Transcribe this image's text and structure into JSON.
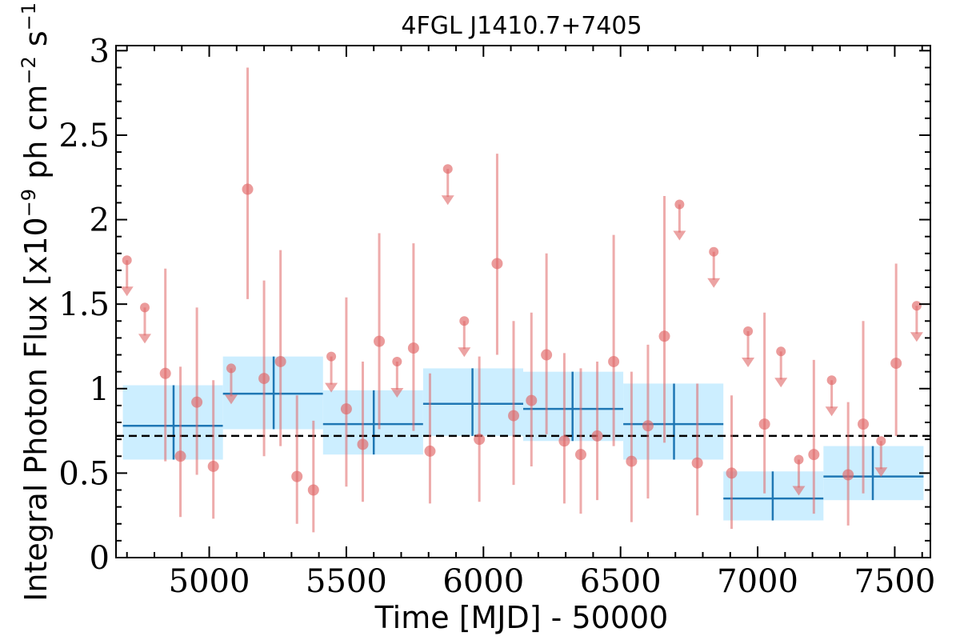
{
  "chart_data": {
    "type": "scatter",
    "title": "4FGL J1410.7+7405",
    "xlabel": "Time [MJD] - 50000",
    "ylabel_main": "Integral Photon Flux [x10",
    "ylabel_exp1": "−9",
    "ylabel_mid": " ph cm",
    "ylabel_exp2": "−2",
    "ylabel_mid2": " s",
    "ylabel_exp3": "−1",
    "ylabel_end": "]",
    "xlim": [
      4660,
      7630
    ],
    "ylim": [
      0,
      3.03
    ],
    "xticks": [
      5000,
      5500,
      6000,
      6500,
      7000,
      7500
    ],
    "xtick_labels": [
      "5000",
      "5500",
      "6000",
      "6500",
      "7000",
      "7500"
    ],
    "yticks": [
      0,
      0.5,
      1,
      1.5,
      2,
      2.5,
      3
    ],
    "ytick_labels": [
      "0",
      "0.5",
      "1",
      "1.5",
      "2",
      "2.5",
      "3"
    ],
    "grid": false,
    "mean_flux": 0.72,
    "colors": {
      "points": "#e06666",
      "bins_fill": "#cceeff",
      "bins_line": "#1f77b4",
      "mean_line": "#000000"
    },
    "detections": [
      {
        "x": 4840,
        "y": 1.09,
        "ylo": 0.57,
        "yhi": 1.71
      },
      {
        "x": 4895,
        "y": 0.6,
        "ylo": 0.24,
        "yhi": 1.13
      },
      {
        "x": 4955,
        "y": 0.92,
        "ylo": 0.49,
        "yhi": 1.48
      },
      {
        "x": 5015,
        "y": 0.54,
        "ylo": 0.23,
        "yhi": 1.05
      },
      {
        "x": 5140,
        "y": 2.18,
        "ylo": 1.53,
        "yhi": 2.9
      },
      {
        "x": 5200,
        "y": 1.06,
        "ylo": 0.6,
        "yhi": 1.64
      },
      {
        "x": 5260,
        "y": 1.16,
        "ylo": 0.66,
        "yhi": 1.82
      },
      {
        "x": 5320,
        "y": 0.48,
        "ylo": 0.2,
        "yhi": 0.96
      },
      {
        "x": 5380,
        "y": 0.4,
        "ylo": 0.15,
        "yhi": 0.81
      },
      {
        "x": 5500,
        "y": 0.88,
        "ylo": 0.42,
        "yhi": 1.54
      },
      {
        "x": 5560,
        "y": 0.67,
        "ylo": 0.33,
        "yhi": 1.16
      },
      {
        "x": 5620,
        "y": 1.28,
        "ylo": 0.76,
        "yhi": 1.92
      },
      {
        "x": 5745,
        "y": 1.24,
        "ylo": 0.75,
        "yhi": 1.86
      },
      {
        "x": 5805,
        "y": 0.63,
        "ylo": 0.32,
        "yhi": 1.09
      },
      {
        "x": 5985,
        "y": 0.7,
        "ylo": 0.33,
        "yhi": 1.19
      },
      {
        "x": 6050,
        "y": 1.74,
        "ylo": 1.2,
        "yhi": 2.39
      },
      {
        "x": 6110,
        "y": 0.84,
        "ylo": 0.43,
        "yhi": 1.4
      },
      {
        "x": 6175,
        "y": 0.93,
        "ylo": 0.54,
        "yhi": 1.45
      },
      {
        "x": 6230,
        "y": 1.2,
        "ylo": 0.73,
        "yhi": 1.8
      },
      {
        "x": 6295,
        "y": 0.69,
        "ylo": 0.32,
        "yhi": 1.21
      },
      {
        "x": 6355,
        "y": 0.61,
        "ylo": 0.26,
        "yhi": 1.12
      },
      {
        "x": 6415,
        "y": 0.72,
        "ylo": 0.34,
        "yhi": 1.16
      },
      {
        "x": 6475,
        "y": 1.16,
        "ylo": 0.66,
        "yhi": 1.91
      },
      {
        "x": 6540,
        "y": 0.57,
        "ylo": 0.21,
        "yhi": 1.1
      },
      {
        "x": 6600,
        "y": 0.78,
        "ylo": 0.35,
        "yhi": 1.26
      },
      {
        "x": 6660,
        "y": 1.31,
        "ylo": 0.68,
        "yhi": 2.14
      },
      {
        "x": 6780,
        "y": 0.56,
        "ylo": 0.25,
        "yhi": 1.03
      },
      {
        "x": 6905,
        "y": 0.5,
        "ylo": 0.17,
        "yhi": 0.96
      },
      {
        "x": 7025,
        "y": 0.79,
        "ylo": 0.38,
        "yhi": 1.45
      },
      {
        "x": 7205,
        "y": 0.61,
        "ylo": 0.26,
        "yhi": 1.17
      },
      {
        "x": 7330,
        "y": 0.49,
        "ylo": 0.19,
        "yhi": 0.92
      },
      {
        "x": 7385,
        "y": 0.79,
        "ylo": 0.38,
        "yhi": 1.4
      },
      {
        "x": 7505,
        "y": 1.15,
        "ylo": 0.72,
        "yhi": 1.74
      }
    ],
    "upper_limits": [
      {
        "x": 4700,
        "y": 1.76
      },
      {
        "x": 4765,
        "y": 1.48
      },
      {
        "x": 5080,
        "y": 1.12
      },
      {
        "x": 5445,
        "y": 1.19
      },
      {
        "x": 5685,
        "y": 1.16
      },
      {
        "x": 5870,
        "y": 2.3
      },
      {
        "x": 5930,
        "y": 1.4
      },
      {
        "x": 6715,
        "y": 2.09
      },
      {
        "x": 6840,
        "y": 1.81
      },
      {
        "x": 6965,
        "y": 1.34
      },
      {
        "x": 7085,
        "y": 1.22
      },
      {
        "x": 7150,
        "y": 0.58
      },
      {
        "x": 7270,
        "y": 1.05
      },
      {
        "x": 7450,
        "y": 0.69
      },
      {
        "x": 7580,
        "y": 1.49
      }
    ],
    "bins": [
      {
        "x0": 4685,
        "x1": 5050,
        "xc": 4870,
        "y": 0.78,
        "ylo": 0.58,
        "yhi": 1.02
      },
      {
        "x0": 5050,
        "x1": 5415,
        "xc": 5235,
        "y": 0.97,
        "ylo": 0.76,
        "yhi": 1.19
      },
      {
        "x0": 5415,
        "x1": 5780,
        "xc": 5600,
        "y": 0.79,
        "ylo": 0.61,
        "yhi": 0.99
      },
      {
        "x0": 5780,
        "x1": 6145,
        "xc": 5960,
        "y": 0.91,
        "ylo": 0.72,
        "yhi": 1.12
      },
      {
        "x0": 6145,
        "x1": 6510,
        "xc": 6325,
        "y": 0.88,
        "ylo": 0.69,
        "yhi": 1.1
      },
      {
        "x0": 6510,
        "x1": 6875,
        "xc": 6695,
        "y": 0.79,
        "ylo": 0.58,
        "yhi": 1.03
      },
      {
        "x0": 6875,
        "x1": 7240,
        "xc": 7055,
        "y": 0.35,
        "ylo": 0.22,
        "yhi": 0.51
      },
      {
        "x0": 7240,
        "x1": 7605,
        "xc": 7420,
        "y": 0.48,
        "ylo": 0.34,
        "yhi": 0.66
      }
    ]
  }
}
